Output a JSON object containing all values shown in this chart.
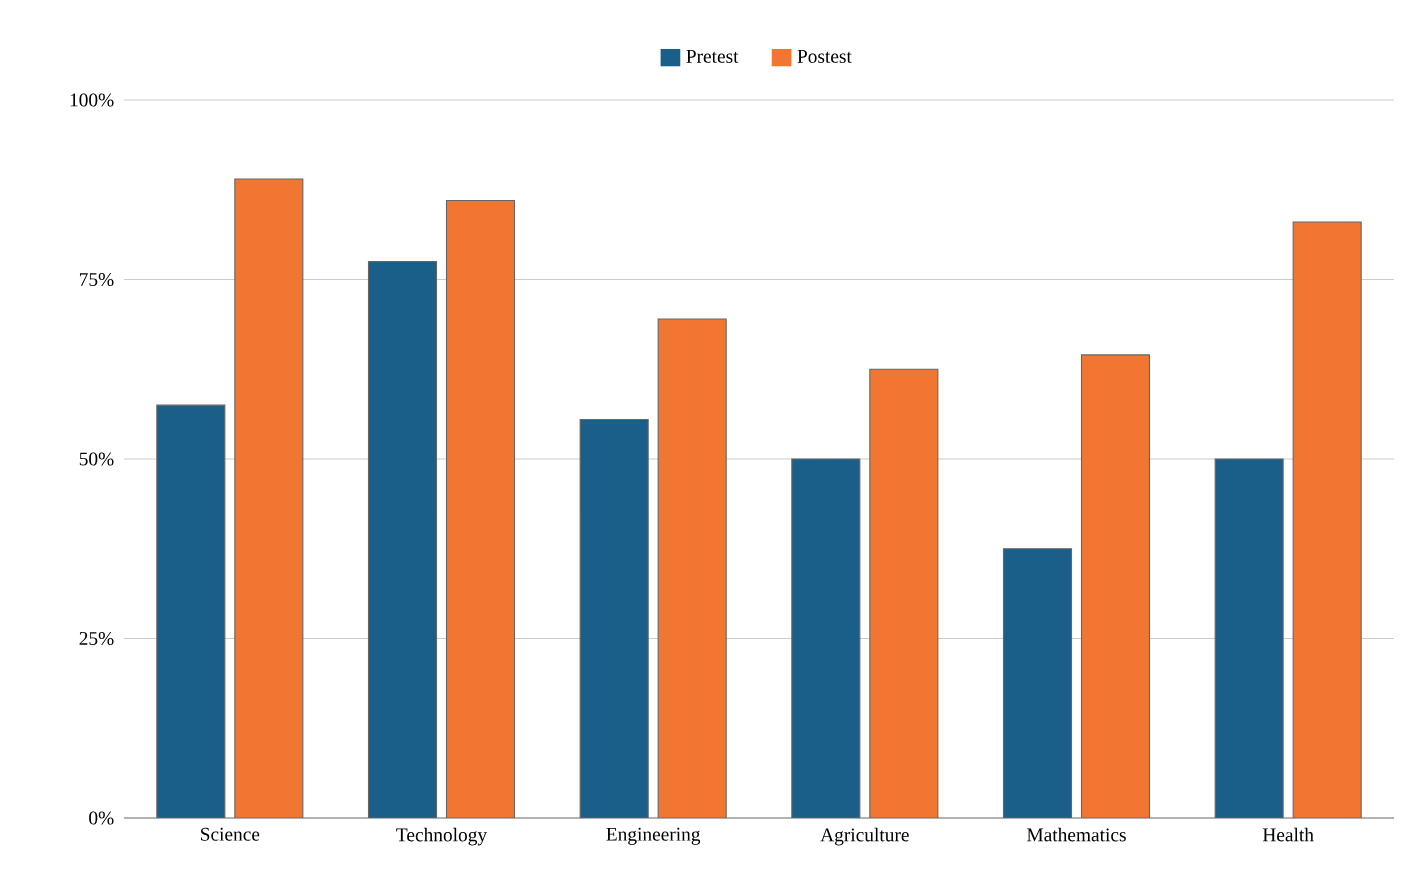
{
  "chart_data": {
    "type": "bar",
    "categories": [
      "Science",
      "Technology",
      "Engineering",
      "Agriculture",
      "Mathematics",
      "Health"
    ],
    "series": [
      {
        "name": "Pretest",
        "color": "#1a5e8a",
        "values": [
          57.5,
          77.5,
          55.5,
          50,
          37.5,
          50
        ]
      },
      {
        "name": "Postest",
        "color": "#f07632",
        "values": [
          89,
          86,
          69.5,
          62.5,
          64.5,
          83
        ]
      }
    ],
    "ylim": [
      0,
      100
    ],
    "yticks": [
      {
        "value": 0,
        "label": "0%"
      },
      {
        "value": 25,
        "label": "25%"
      },
      {
        "value": 50,
        "label": "50%"
      },
      {
        "value": 75,
        "label": "75%"
      },
      {
        "value": 100,
        "label": "100%"
      }
    ],
    "grid": "y",
    "legend": "top"
  }
}
